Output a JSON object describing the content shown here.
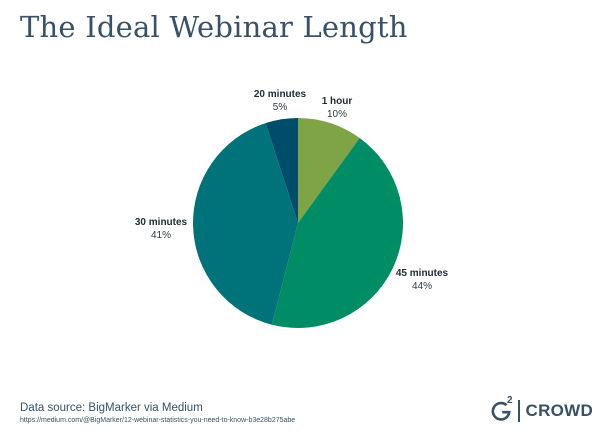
{
  "title": "The Ideal Webinar Length",
  "chart_data": {
    "type": "pie",
    "title": "The Ideal Webinar Length",
    "slices": [
      {
        "label": "1 hour",
        "value": 10,
        "display": "10%",
        "color": "#7ea446"
      },
      {
        "label": "45 minutes",
        "value": 44,
        "display": "44%",
        "color": "#008d66"
      },
      {
        "label": "30 minutes",
        "value": 41,
        "display": "41%",
        "color": "#00737a"
      },
      {
        "label": "20 minutes",
        "value": 5,
        "display": "5%",
        "color": "#004d6b"
      }
    ]
  },
  "footer": {
    "source": "Data source: BigMarker via Medium",
    "url": "https://medium.com/@BigMarker/12-webinar-statistics-you-need-to-know-b3e28b275abe"
  },
  "brand": {
    "superscript": "2",
    "text": "CROWD",
    "color": "#365168",
    "icon": "g2-logo-icon"
  }
}
